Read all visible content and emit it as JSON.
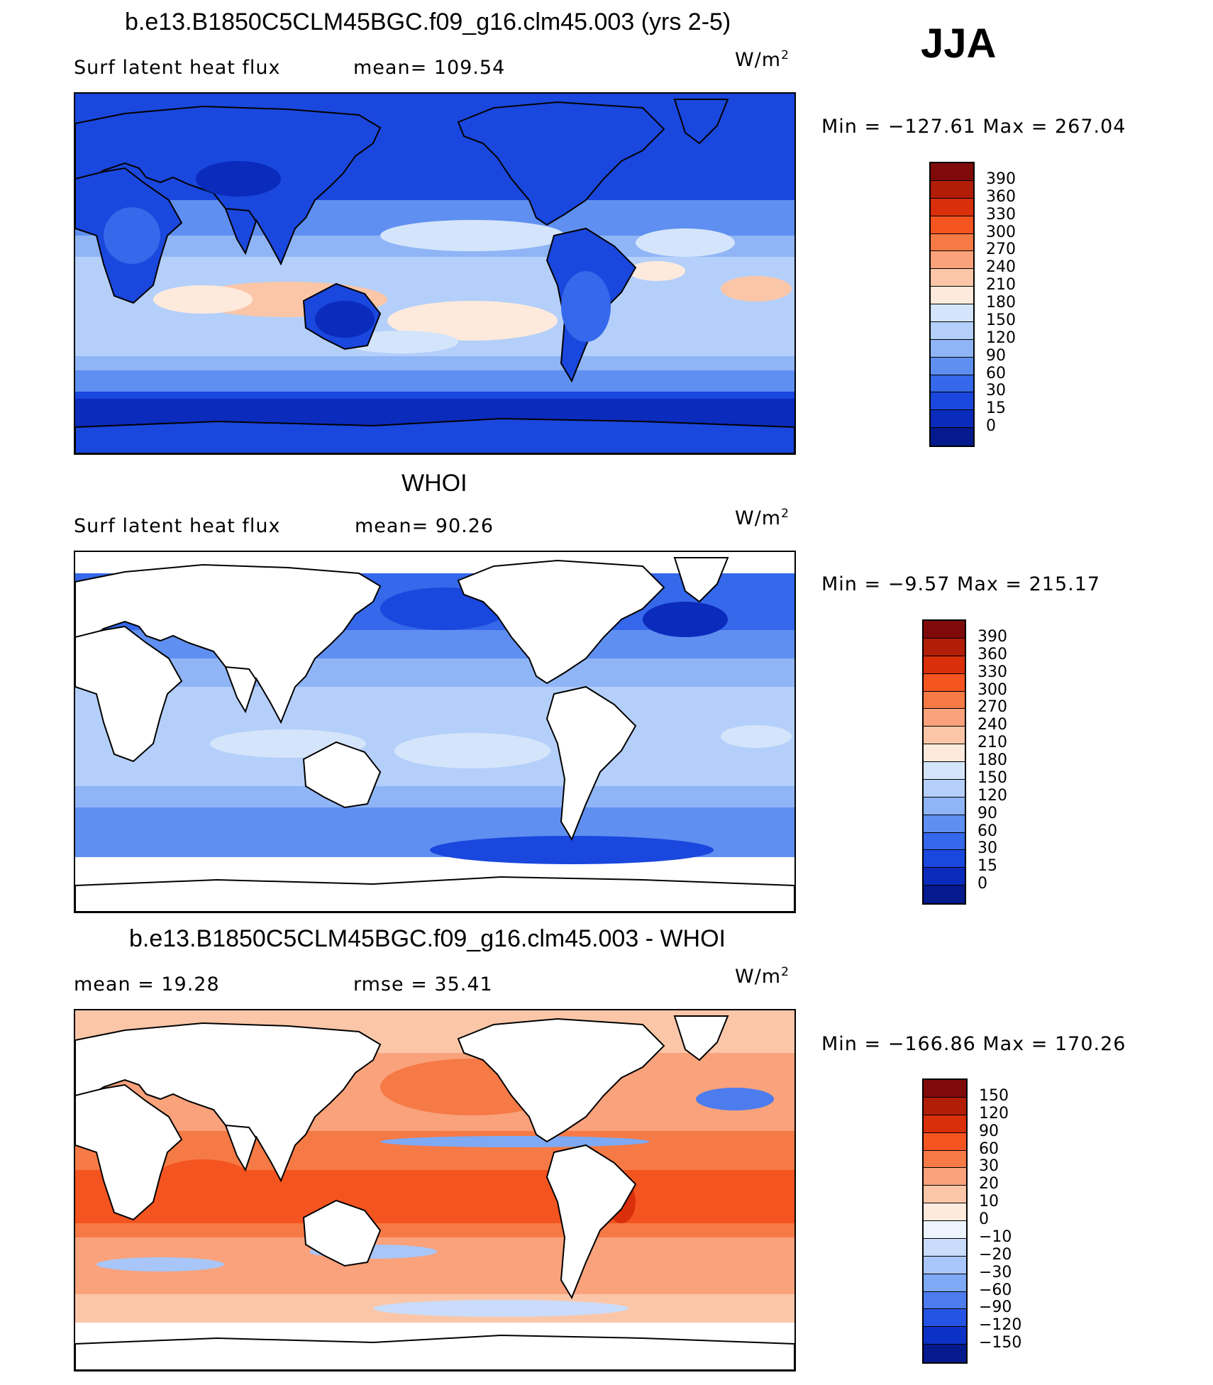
{
  "season": "JJA",
  "panels": [
    {
      "title": "b.e13.B1850C5CLM45BGC.f09_g16.clm45.003 (yrs 2-5)",
      "left_label": "Surf latent heat flux",
      "mid_label": "mean= 109.54",
      "units_base": "W/m",
      "units_sup": "2",
      "minmax": "Min = −127.61 Max = 267.04",
      "style": "model"
    },
    {
      "title": "WHOI",
      "left_label": "Surf latent heat flux",
      "mid_label": "mean=  90.26",
      "units_base": "W/m",
      "units_sup": "2",
      "minmax": "Min =  −9.57 Max = 215.17",
      "style": "obs"
    },
    {
      "title": "b.e13.B1850C5CLM45BGC.f09_g16.clm45.003 - WHOI",
      "left_label": "mean =  19.28",
      "mid_label": "rmse =  35.41",
      "units_base": "W/m",
      "units_sup": "2",
      "minmax": "Min = −166.86 Max = 170.26",
      "style": "diff"
    }
  ],
  "colorbars": {
    "abs": {
      "labels": [
        "390",
        "360",
        "330",
        "300",
        "270",
        "240",
        "210",
        "180",
        "150",
        "120",
        "90",
        "60",
        "30",
        "15",
        "0"
      ],
      "colors": [
        "#7f0a0a",
        "#b21d07",
        "#d92f0a",
        "#f45420",
        "#f67a45",
        "#f9a27c",
        "#fbc6a8",
        "#fdeadc",
        "#d4e5fb",
        "#b4cffa",
        "#8fb5f6",
        "#5f8ff0",
        "#3568ea",
        "#1a47dd",
        "#0b2bbd",
        "#051a8c"
      ]
    },
    "diff": {
      "labels": [
        "150",
        "120",
        "90",
        "60",
        "30",
        "20",
        "10",
        "0",
        "−10",
        "−20",
        "−30",
        "−60",
        "−90",
        "−120",
        "−150"
      ],
      "colors": [
        "#7f0a0a",
        "#b21d07",
        "#d92f0a",
        "#f45420",
        "#f67a45",
        "#f9a27c",
        "#fbc6a8",
        "#fdeadc",
        "#eef4fd",
        "#c9dcfb",
        "#a8c6f9",
        "#7ea9f4",
        "#4c7cee",
        "#2554e4",
        "#0c31c6",
        "#051a8c"
      ]
    }
  },
  "chart_data": [
    {
      "type": "heatmap",
      "title": "b.e13.B1850C5CLM45BGC.f09_g16.clm45.003 (yrs 2-5)",
      "variable": "Surf latent heat flux",
      "season": "JJA",
      "units": "W/m2",
      "mean": 109.54,
      "min": -127.61,
      "max": 267.04,
      "contour_levels": [
        0,
        15,
        30,
        60,
        90,
        120,
        150,
        180,
        210,
        240,
        270,
        300,
        330,
        360,
        390
      ]
    },
    {
      "type": "heatmap",
      "title": "WHOI",
      "variable": "Surf latent heat flux",
      "season": "JJA",
      "units": "W/m2",
      "mean": 90.26,
      "min": -9.57,
      "max": 215.17,
      "contour_levels": [
        0,
        15,
        30,
        60,
        90,
        120,
        150,
        180,
        210,
        240,
        270,
        300,
        330,
        360,
        390
      ]
    },
    {
      "type": "heatmap",
      "title": "b.e13.B1850C5CLM45BGC.f09_g16.clm45.003 - WHOI",
      "season": "JJA",
      "units": "W/m2",
      "mean": 19.28,
      "rmse": 35.41,
      "min": -166.86,
      "max": 170.26,
      "contour_levels": [
        -150,
        -120,
        -90,
        -60,
        -30,
        -20,
        -10,
        0,
        10,
        20,
        30,
        60,
        90,
        120,
        150
      ]
    }
  ]
}
